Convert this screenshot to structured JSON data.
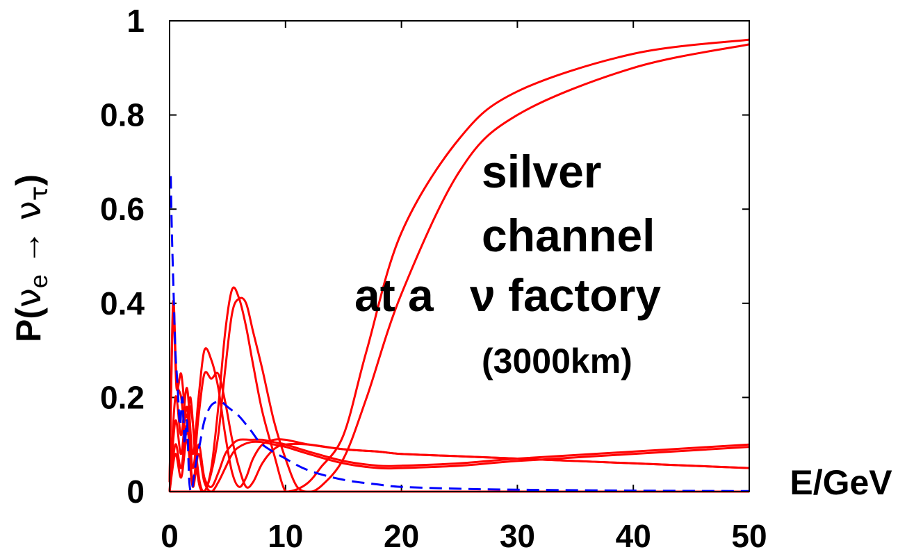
{
  "chart_data": {
    "type": "line",
    "xlabel": "E/GeV",
    "ylabel": {
      "prefix": "P(",
      "nu1": "ν",
      "sub1": "e",
      "arrow": " → ",
      "nu2": "ν",
      "sub2": "τ",
      "suffix": ")"
    },
    "xlim": [
      0,
      50
    ],
    "ylim": [
      0,
      1
    ],
    "xticks": [
      "0",
      "10",
      "20",
      "30",
      "40",
      "50"
    ],
    "yticks": [
      "0",
      "0.2",
      "0.4",
      "0.6",
      "0.8",
      "1"
    ],
    "grid": false,
    "annotations": {
      "line1": "silver",
      "line2": "channel",
      "line3a": "at a",
      "line3b": "ν factory",
      "line4": "(3000km)"
    },
    "colors": {
      "solid": "#ff0000",
      "dashed": "#0000ff"
    },
    "series": [
      {
        "style": "solid",
        "color": "#ff0000",
        "x": [
          0.0,
          0.3,
          0.6,
          1.0,
          1.4,
          1.8,
          2.2,
          2.6,
          3.0,
          3.6,
          4.2,
          4.8,
          5.4,
          6.0,
          6.6,
          7.2,
          8.0,
          9.0,
          10,
          11,
          12,
          13,
          15,
          17,
          20,
          25,
          30,
          40,
          50
        ],
        "y": [
          0.02,
          0.38,
          0.22,
          0.25,
          0.16,
          0.18,
          0.1,
          0.02,
          0.0,
          0.05,
          0.18,
          0.34,
          0.43,
          0.41,
          0.35,
          0.27,
          0.17,
          0.08,
          0.0,
          0.005,
          0.02,
          0.05,
          0.12,
          0.3,
          0.55,
          0.75,
          0.85,
          0.93,
          0.96
        ]
      },
      {
        "style": "solid",
        "color": "#ff0000",
        "x": [
          0.0,
          0.3,
          0.6,
          1.0,
          1.4,
          1.8,
          2.2,
          2.6,
          3.0,
          3.6,
          4.2,
          4.8,
          5.4,
          6.0,
          6.6,
          7.2,
          8.0,
          9.0,
          10,
          11,
          12,
          13,
          15,
          17,
          20,
          25,
          30,
          40,
          50
        ],
        "y": [
          0.02,
          0.4,
          0.24,
          0.2,
          0.12,
          0.2,
          0.08,
          0.01,
          0.0,
          0.04,
          0.12,
          0.26,
          0.38,
          0.41,
          0.4,
          0.34,
          0.26,
          0.15,
          0.07,
          0.01,
          0.0,
          0.01,
          0.07,
          0.2,
          0.42,
          0.68,
          0.8,
          0.9,
          0.95
        ]
      },
      {
        "style": "solid",
        "color": "#ff0000",
        "x": [
          0.0,
          0.5,
          1.0,
          1.5,
          2.0,
          2.5,
          3.0,
          3.6,
          4.2,
          4.8,
          5.4,
          6.0,
          6.6,
          7.2,
          8.0,
          9.0,
          10,
          12,
          15,
          18,
          20,
          25,
          30,
          40,
          50
        ],
        "y": [
          0.0,
          0.2,
          0.12,
          0.22,
          0.08,
          0.2,
          0.3,
          0.28,
          0.22,
          0.12,
          0.04,
          0.01,
          0.03,
          0.07,
          0.1,
          0.11,
          0.11,
          0.1,
          0.09,
          0.085,
          0.08,
          0.075,
          0.07,
          0.06,
          0.05
        ]
      },
      {
        "style": "solid",
        "color": "#ff0000",
        "x": [
          0.0,
          0.5,
          1.0,
          1.5,
          2.0,
          2.5,
          3.0,
          3.6,
          4.2,
          4.8,
          5.4,
          6.0,
          6.6,
          7.2,
          8.0,
          9.0,
          10,
          12,
          15,
          18,
          20,
          25,
          30,
          40,
          50
        ],
        "y": [
          0.0,
          0.15,
          0.08,
          0.18,
          0.05,
          0.16,
          0.25,
          0.24,
          0.25,
          0.19,
          0.11,
          0.05,
          0.01,
          0.02,
          0.06,
          0.09,
          0.1,
          0.1,
          0.09,
          0.085,
          0.08,
          0.075,
          0.07,
          0.06,
          0.05
        ]
      },
      {
        "style": "solid",
        "color": "#ff0000",
        "x": [
          0.0,
          0.5,
          1.0,
          1.5,
          2.0,
          2.5,
          3.0,
          3.6,
          4.2,
          4.8,
          5.4,
          6.0,
          7.0,
          8.0,
          9.0,
          10,
          12,
          15,
          18,
          20,
          25,
          30,
          40,
          50
        ],
        "y": [
          0.0,
          0.1,
          0.05,
          0.14,
          0.02,
          0.1,
          0.03,
          0.01,
          0.04,
          0.08,
          0.1,
          0.11,
          0.11,
          0.11,
          0.105,
          0.1,
          0.085,
          0.065,
          0.055,
          0.055,
          0.06,
          0.07,
          0.085,
          0.1
        ]
      },
      {
        "style": "solid",
        "color": "#ff0000",
        "x": [
          0.0,
          0.5,
          1.0,
          1.5,
          2.0,
          2.5,
          3.0,
          3.6,
          4.2,
          4.8,
          5.4,
          6.0,
          7.0,
          8.0,
          9.0,
          10,
          12,
          15,
          18,
          20,
          25,
          30,
          40,
          50
        ],
        "y": [
          0.0,
          0.08,
          0.03,
          0.11,
          0.01,
          0.08,
          0.02,
          0.0,
          0.02,
          0.05,
          0.08,
          0.095,
          0.105,
          0.105,
          0.1,
          0.095,
          0.08,
          0.06,
          0.05,
          0.05,
          0.055,
          0.065,
          0.08,
          0.095
        ]
      },
      {
        "style": "solid",
        "color": "#ff0000",
        "x": [
          0.0,
          10,
          20,
          30,
          40,
          50
        ],
        "y": [
          0.0,
          0.0,
          0.0,
          0.0,
          0.0,
          0.0
        ]
      },
      {
        "style": "dashed",
        "color": "#0000ff",
        "x": [
          0.1,
          0.2,
          0.35,
          0.5,
          0.7,
          0.9,
          1.1,
          1.3,
          1.5,
          1.7,
          1.9,
          2.2,
          2.6,
          3.0,
          3.5,
          4.0,
          4.5,
          5.0,
          6.0,
          7.0,
          8.0,
          10,
          12,
          15,
          18,
          20,
          25,
          30,
          40,
          50
        ],
        "y": [
          0.67,
          0.55,
          0.42,
          0.3,
          0.22,
          0.14,
          0.2,
          0.1,
          0.15,
          0.02,
          0.0,
          0.05,
          0.1,
          0.15,
          0.18,
          0.19,
          0.19,
          0.18,
          0.16,
          0.13,
          0.1,
          0.07,
          0.045,
          0.025,
          0.015,
          0.01,
          0.006,
          0.004,
          0.002,
          0.001
        ]
      }
    ]
  }
}
